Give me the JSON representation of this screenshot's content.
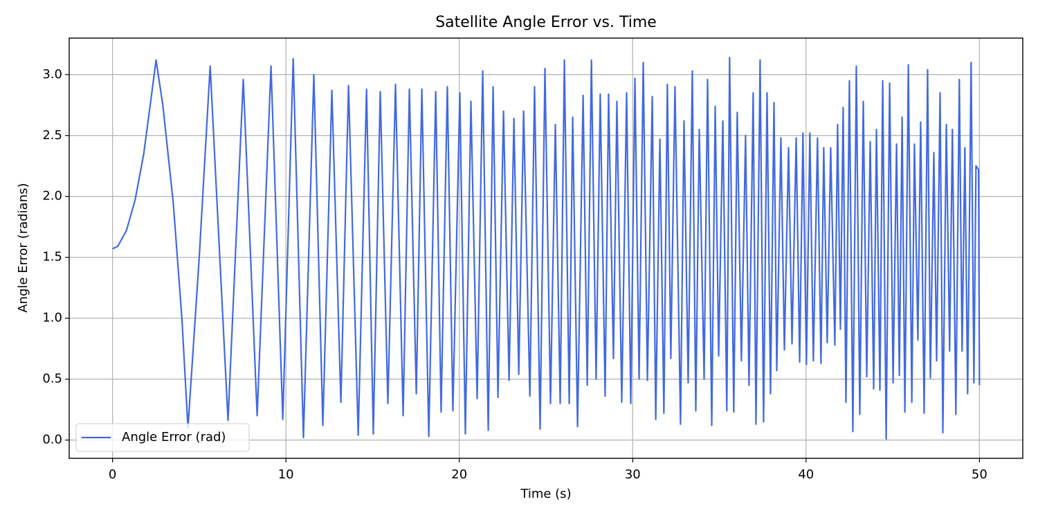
{
  "chart_data": {
    "type": "line",
    "title": "Satellite Angle Error vs. Time",
    "x_label": "Time (s)",
    "y_label": "Angle Error (radians)",
    "grid": true,
    "legend": "lower left",
    "xlim": [
      -2.5,
      52.5
    ],
    "ylim": [
      -0.15,
      3.3
    ],
    "xticks": [
      0,
      10,
      20,
      30,
      40,
      50
    ],
    "yticks": [
      {
        "value": 0,
        "label": "0.0"
      },
      0.5,
      {
        "value": 1,
        "label": "1.0"
      },
      1.5,
      {
        "value": 2,
        "label": "2.0"
      },
      2.5,
      {
        "value": 3,
        "label": "3.0"
      }
    ],
    "x": [
      0,
      0.3,
      0.8,
      1.3,
      1.8,
      2.2,
      2.51,
      2.9,
      3.5,
      4.0,
      4.35,
      5.0,
      5.63,
      6.66,
      7.54,
      8.34,
      9.14,
      9.82,
      10.42,
      11.01,
      11.61,
      12.13,
      12.65,
      13.17,
      13.61,
      14.17,
      14.65,
      15.04,
      15.44,
      15.88,
      16.32,
      16.76,
      17.12,
      17.52,
      17.84,
      18.24,
      18.64,
      18.95,
      19.31,
      19.63,
      20.03,
      20.35,
      20.67,
      21.03,
      21.35,
      21.67,
      21.95,
      22.23,
      22.55,
      22.87,
      23.15,
      23.43,
      23.71,
      24.07,
      24.34,
      24.66,
      24.94,
      25.26,
      25.54,
      25.82,
      26.06,
      26.34,
      26.54,
      26.82,
      27.14,
      27.38,
      27.62,
      27.89,
      28.13,
      28.41,
      28.61,
      28.89,
      29.09,
      29.37,
      29.65,
      29.89,
      30.13,
      30.37,
      30.61,
      30.85,
      31.13,
      31.33,
      31.57,
      31.8,
      32.0,
      32.2,
      32.44,
      32.76,
      32.96,
      33.2,
      33.44,
      33.64,
      33.84,
      34.12,
      34.32,
      34.56,
      34.76,
      34.96,
      35.2,
      35.43,
      35.59,
      35.83,
      36.03,
      36.27,
      36.51,
      36.71,
      36.95,
      37.11,
      37.35,
      37.55,
      37.75,
      37.95,
      38.15,
      38.31,
      38.55,
      38.75,
      38.99,
      39.19,
      39.43,
      39.63,
      39.82,
      40.02,
      40.22,
      40.42,
      40.66,
      40.86,
      41.02,
      41.22,
      41.42,
      41.66,
      41.82,
      41.98,
      42.14,
      42.3,
      42.5,
      42.7,
      42.9,
      43.1,
      43.3,
      43.5,
      43.7,
      43.9,
      44.06,
      44.26,
      44.42,
      44.62,
      44.82,
      45.02,
      45.22,
      45.38,
      45.54,
      45.7,
      45.9,
      46.1,
      46.25,
      46.45,
      46.61,
      46.81,
      47.01,
      47.17,
      47.37,
      47.53,
      47.73,
      47.89,
      48.09,
      48.28,
      48.44,
      48.64,
      48.84,
      49.0,
      49.16,
      49.32,
      49.52,
      49.68,
      49.8,
      49.95,
      50.0
    ],
    "series": [
      {
        "name": "Angle Error (rad)",
        "color": "#4169e1",
        "values": [
          1.57,
          1.59,
          1.72,
          1.97,
          2.35,
          2.78,
          3.12,
          2.75,
          1.95,
          1.0,
          0.1,
          1.5,
          3.07,
          0.16,
          2.96,
          0.2,
          3.07,
          0.17,
          3.13,
          0.02,
          3.0,
          0.12,
          2.87,
          0.31,
          2.91,
          0.04,
          2.88,
          0.05,
          2.86,
          0.3,
          2.92,
          0.2,
          2.88,
          0.38,
          2.88,
          0.03,
          2.86,
          0.23,
          2.9,
          0.24,
          2.85,
          0.05,
          2.78,
          0.34,
          3.03,
          0.08,
          2.9,
          0.35,
          2.7,
          0.49,
          2.64,
          0.54,
          2.7,
          0.36,
          2.9,
          0.09,
          3.05,
          0.3,
          2.59,
          0.3,
          3.12,
          0.3,
          2.65,
          0.11,
          2.83,
          0.45,
          3.12,
          0.5,
          2.84,
          0.36,
          2.84,
          0.67,
          2.78,
          0.31,
          2.85,
          0.3,
          2.97,
          0.5,
          3.1,
          0.49,
          2.82,
          0.17,
          2.47,
          0.22,
          2.92,
          0.67,
          2.9,
          0.13,
          2.62,
          0.47,
          3.03,
          0.24,
          2.55,
          0.5,
          2.96,
          0.12,
          2.74,
          0.69,
          2.62,
          0.24,
          3.14,
          0.23,
          2.69,
          0.65,
          2.5,
          0.45,
          2.85,
          0.13,
          3.12,
          0.15,
          2.85,
          0.38,
          2.77,
          0.57,
          2.48,
          0.74,
          2.4,
          0.79,
          2.48,
          0.64,
          2.52,
          0.62,
          2.52,
          0.65,
          2.48,
          0.63,
          2.4,
          0.8,
          2.4,
          0.78,
          2.59,
          0.91,
          2.73,
          0.31,
          2.95,
          0.07,
          3.07,
          0.21,
          2.78,
          0.52,
          2.45,
          0.42,
          2.55,
          0.41,
          2.95,
          0.01,
          2.93,
          0.47,
          2.43,
          0.53,
          2.65,
          0.23,
          3.08,
          0.31,
          2.43,
          0.82,
          2.61,
          0.22,
          3.04,
          0.51,
          2.36,
          0.65,
          2.85,
          0.06,
          2.59,
          0.73,
          2.55,
          0.21,
          2.96,
          0.73,
          2.4,
          0.38,
          3.1,
          0.47,
          2.25,
          2.22,
          0.45
        ]
      }
    ]
  }
}
